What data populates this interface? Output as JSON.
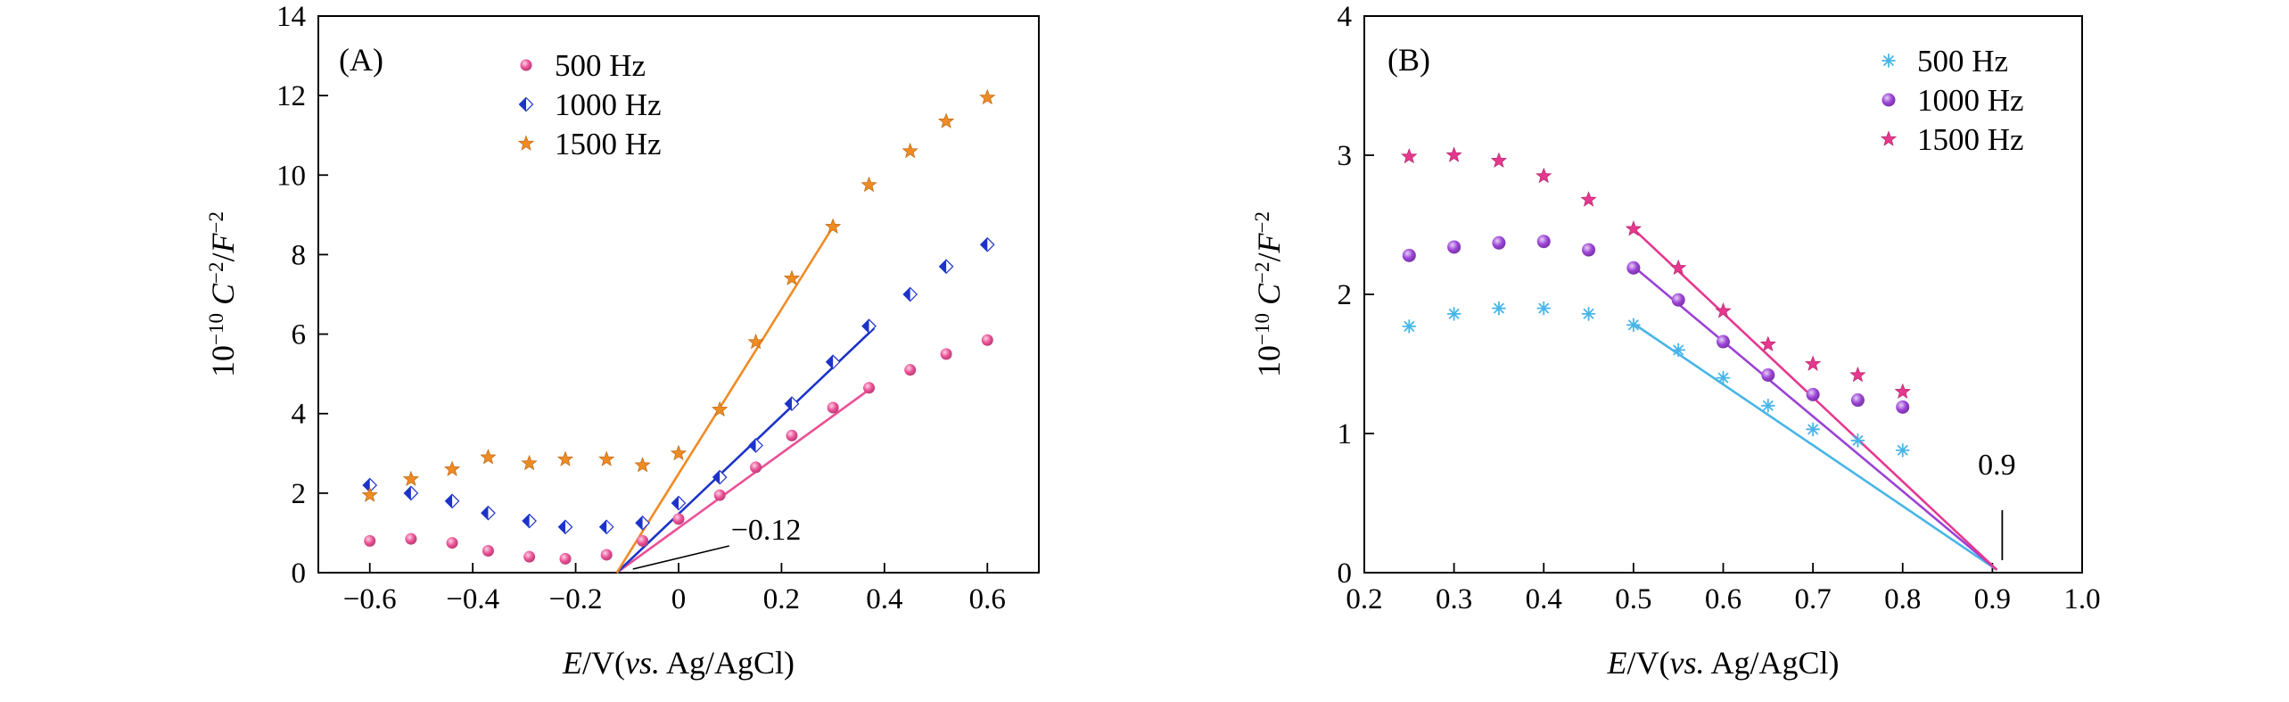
{
  "chart_data": [
    {
      "id": "A",
      "type": "scatter",
      "panel_label": "(A)",
      "xlabel": {
        "italic": "E",
        "mid": "/V(",
        "italic2": "vs.",
        "rest": " Ag/AgCl)"
      },
      "ylabel": {
        "base": "10",
        "exp": "−10",
        "italic": "C",
        "exp2": "−2",
        "sep": "/",
        "italic2": "F",
        "exp3": "−2"
      },
      "xlim": [
        -0.7,
        0.7
      ],
      "ylim": [
        0,
        14
      ],
      "xticks": [
        -0.6,
        -0.4,
        -0.2,
        0,
        0.2,
        0.4,
        0.6
      ],
      "xtick_labels": [
        "−0.6",
        "−0.4",
        "−0.2",
        "0",
        "0.2",
        "0.4",
        "0.6"
      ],
      "yticks": [
        0,
        2,
        4,
        6,
        8,
        10,
        12,
        14
      ],
      "ytick_labels": [
        "0",
        "2",
        "4",
        "6",
        "8",
        "10",
        "12",
        "14"
      ],
      "series": [
        {
          "name": "500 Hz",
          "marker": "circle",
          "color": "#ec4f96",
          "x": [
            -0.6,
            -0.52,
            -0.44,
            -0.37,
            -0.29,
            -0.22,
            -0.14,
            -0.07,
            0.0,
            0.08,
            0.15,
            0.22,
            0.3,
            0.37,
            0.45,
            0.52,
            0.6
          ],
          "y": [
            0.8,
            0.85,
            0.75,
            0.55,
            0.4,
            0.35,
            0.45,
            0.8,
            1.35,
            1.95,
            2.65,
            3.45,
            4.15,
            4.65,
            5.1,
            5.5,
            5.85
          ],
          "fit": {
            "x": [
              -0.12,
              0.37
            ],
            "y": [
              0,
              4.6
            ]
          }
        },
        {
          "name": "1000 Hz",
          "marker": "diamond-half",
          "color": "#1c33c9",
          "x": [
            -0.6,
            -0.52,
            -0.44,
            -0.37,
            -0.29,
            -0.22,
            -0.14,
            -0.07,
            0.0,
            0.08,
            0.15,
            0.22,
            0.3,
            0.37,
            0.45,
            0.52,
            0.6
          ],
          "y": [
            2.2,
            2.0,
            1.8,
            1.5,
            1.3,
            1.15,
            1.15,
            1.25,
            1.75,
            2.4,
            3.2,
            4.25,
            5.3,
            6.2,
            7.0,
            7.7,
            8.25
          ],
          "fit": {
            "x": [
              -0.12,
              0.38
            ],
            "y": [
              0,
              6.15
            ]
          }
        },
        {
          "name": "1500 Hz",
          "marker": "star",
          "color": "#f08b24",
          "x": [
            -0.6,
            -0.52,
            -0.44,
            -0.37,
            -0.29,
            -0.22,
            -0.14,
            -0.07,
            0.0,
            0.08,
            0.15,
            0.22,
            0.3,
            0.37,
            0.45,
            0.52,
            0.6
          ],
          "y": [
            1.95,
            2.35,
            2.6,
            2.9,
            2.75,
            2.85,
            2.85,
            2.7,
            3.0,
            4.1,
            5.8,
            7.4,
            8.7,
            9.75,
            10.6,
            11.35,
            11.95
          ],
          "fit": {
            "x": [
              -0.12,
              0.3
            ],
            "y": [
              0,
              8.7
            ]
          }
        }
      ],
      "annotation": {
        "text": "−0.12",
        "x": -0.12,
        "y": 0
      }
    },
    {
      "id": "B",
      "type": "scatter",
      "panel_label": "(B)",
      "xlabel": {
        "italic": "E",
        "mid": "/V(",
        "italic2": "vs.",
        "rest": " Ag/AgCl)"
      },
      "ylabel": {
        "base": "10",
        "exp": "−10",
        "italic": "C",
        "exp2": "−2",
        "sep": "/",
        "italic2": "F",
        "exp3": "−2"
      },
      "xlim": [
        0.2,
        1.0
      ],
      "ylim": [
        0,
        4
      ],
      "xticks": [
        0.2,
        0.3,
        0.4,
        0.5,
        0.6,
        0.7,
        0.8,
        0.9,
        1.0
      ],
      "xtick_labels": [
        "0.2",
        "0.3",
        "0.4",
        "0.5",
        "0.6",
        "0.7",
        "0.8",
        "0.9",
        "1.0"
      ],
      "yticks": [
        0,
        1,
        2,
        3,
        4
      ],
      "ytick_labels": [
        "0",
        "1",
        "2",
        "3",
        "4"
      ],
      "series": [
        {
          "name": "500 Hz",
          "marker": "asterisk",
          "color": "#47b5e8",
          "x": [
            0.25,
            0.3,
            0.35,
            0.4,
            0.45,
            0.5,
            0.55,
            0.6,
            0.65,
            0.7,
            0.75,
            0.8
          ],
          "y": [
            1.77,
            1.86,
            1.9,
            1.9,
            1.86,
            1.78,
            1.6,
            1.4,
            1.2,
            1.03,
            0.95,
            0.88
          ],
          "fit": {
            "x": [
              0.5,
              0.905
            ],
            "y": [
              1.79,
              0.02
            ]
          }
        },
        {
          "name": "1000 Hz",
          "marker": "sphere",
          "color": "#9b42d6",
          "x": [
            0.25,
            0.3,
            0.35,
            0.4,
            0.45,
            0.5,
            0.55,
            0.6,
            0.65,
            0.7,
            0.75,
            0.8
          ],
          "y": [
            2.28,
            2.34,
            2.37,
            2.38,
            2.32,
            2.19,
            1.96,
            1.66,
            1.42,
            1.28,
            1.24,
            1.19
          ],
          "fit": {
            "x": [
              0.5,
              0.905
            ],
            "y": [
              2.2,
              0.02
            ]
          }
        },
        {
          "name": "1500 Hz",
          "marker": "star",
          "color": "#e6388f",
          "x": [
            0.25,
            0.3,
            0.35,
            0.4,
            0.45,
            0.5,
            0.55,
            0.6,
            0.65,
            0.7,
            0.75,
            0.8
          ],
          "y": [
            2.99,
            3.0,
            2.96,
            2.85,
            2.68,
            2.47,
            2.19,
            1.88,
            1.64,
            1.5,
            1.42,
            1.3
          ],
          "fit": {
            "x": [
              0.5,
              0.905
            ],
            "y": [
              2.47,
              0.02
            ]
          }
        }
      ],
      "annotation": {
        "text": "0.9",
        "x": 0.905,
        "y": 0
      }
    }
  ]
}
